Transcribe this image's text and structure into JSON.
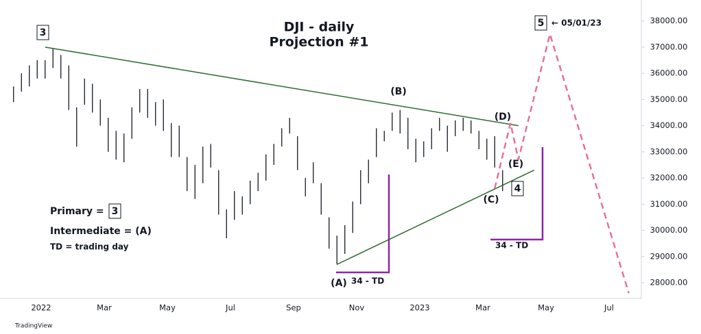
{
  "chart_data": {
    "type": "range_bar",
    "title": "DJI - daily",
    "subtitle": "Projection #1",
    "categories": [
      null,
      null,
      null,
      null,
      "2022",
      null,
      null,
      null,
      null,
      null,
      null,
      null,
      "Mar",
      null,
      null,
      null,
      null,
      null,
      null,
      null,
      "May",
      null,
      null,
      null,
      null,
      null,
      null,
      null,
      "Jul",
      null,
      null,
      null,
      null,
      null,
      null,
      null,
      "Sep",
      null,
      null,
      null,
      null,
      null,
      null,
      null,
      "Nov",
      null,
      null,
      null,
      null,
      null,
      null,
      null,
      "2023",
      null,
      null,
      null,
      null,
      null,
      null,
      null,
      "Mar",
      null,
      null,
      null,
      null,
      null,
      null,
      null,
      "May",
      null,
      null,
      null,
      null,
      null,
      null,
      null,
      "Jul",
      null,
      null,
      null
    ],
    "highs": [
      35500,
      36000,
      36300,
      36500,
      36500,
      36950,
      36700,
      36300,
      34700,
      35800,
      35600,
      35000,
      34300,
      33800,
      33700,
      34700,
      35400,
      35400,
      34900,
      35000,
      34100,
      34000,
      32800,
      32500,
      33200,
      33300,
      32300,
      30800,
      31500,
      31300,
      31900,
      32200,
      32900,
      33300,
      33900,
      34300,
      33600,
      32000,
      32600,
      31800,
      30500,
      29800,
      30200,
      31100,
      32300,
      32700,
      33900,
      33800,
      34500,
      34600,
      34300,
      33500,
      33400,
      33900,
      34300,
      34000,
      34200,
      34300,
      34200,
      33800,
      33500,
      33600,
      32300,
      null,
      null,
      null,
      null,
      null,
      null,
      null,
      null,
      null,
      null,
      null,
      null,
      null,
      null,
      null,
      null,
      null
    ],
    "lows": [
      34900,
      35300,
      35500,
      35800,
      35800,
      36200,
      35800,
      34600,
      33200,
      34800,
      34500,
      34000,
      33000,
      32700,
      32600,
      33500,
      34500,
      34300,
      34000,
      33800,
      32800,
      32800,
      31500,
      31200,
      31800,
      32400,
      30600,
      29700,
      30400,
      30600,
      31000,
      31500,
      31900,
      32500,
      33200,
      33700,
      32300,
      31300,
      31800,
      30600,
      29300,
      28700,
      29100,
      29900,
      31000,
      31800,
      32800,
      33400,
      33800,
      33700,
      33100,
      32600,
      32800,
      33100,
      33800,
      33000,
      33600,
      33800,
      33700,
      33100,
      32700,
      32400,
      31500,
      null,
      null,
      null,
      null,
      null,
      null,
      null,
      null,
      null,
      null,
      null,
      null,
      null,
      null,
      null,
      null,
      null
    ],
    "color": "#131722",
    "trendlines": [
      {
        "x": [
          4,
          64
        ],
        "values": [
          37000,
          34000
        ],
        "color": "#2e6b2e"
      },
      {
        "x": [
          41,
          66
        ],
        "values": [
          28700,
          32300
        ],
        "color": "#2e6b2e"
      }
    ],
    "projection": {
      "x": [
        61,
        63,
        64,
        68,
        78
      ],
      "values": [
        31600,
        34100,
        32700,
        37500,
        27600
      ],
      "color": "#e8709a"
    },
    "ylim": [
      27400,
      38800
    ],
    "yticks": [
      {
        "value": 28000,
        "label": "28000.00"
      },
      {
        "value": 29000,
        "label": "29000.00"
      },
      {
        "value": 30000,
        "label": "30000.00"
      },
      {
        "value": 31000,
        "label": "31000.00"
      },
      {
        "value": 32000,
        "label": "32000.00"
      },
      {
        "value": 33000,
        "label": "33000.00"
      },
      {
        "value": 34000,
        "label": "34000.00"
      },
      {
        "value": 35000,
        "label": "35000.00"
      },
      {
        "value": 36000,
        "label": "36000.00"
      },
      {
        "value": 37000,
        "label": "37000.00"
      },
      {
        "value": 38000,
        "label": "38000.00"
      }
    ],
    "annotations": {
      "wave3": "3",
      "waveB": "(B)",
      "waveD": "(D)",
      "waveE": "(E)",
      "waveC": "(C)",
      "wave4": "4",
      "waveA": "(A)",
      "wave5": "5",
      "date5": "← 05/01/23",
      "td1": "34 - TD",
      "td2": "34 - TD",
      "primary": "Primary  =",
      "primary_val": "3",
      "intermediate": "Intermediate = (A)",
      "td_note": "TD = trading day"
    },
    "footer": "TradingView"
  }
}
